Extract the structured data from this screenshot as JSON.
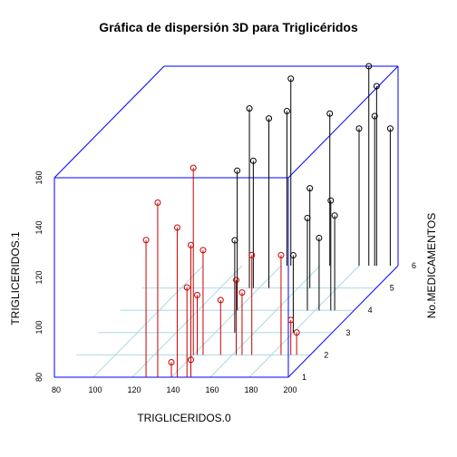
{
  "chart_data": {
    "type": "scatter3d",
    "title": "Gráfica de dispersión 3D para Triglicéridos",
    "xlabel": "TRIGLICERIDOS.0",
    "ylabel": "No.MEDICAMENTOS",
    "zlabel": "TRIGLICERIDOS.1",
    "xlim": [
      80,
      200
    ],
    "ylim": [
      1,
      6
    ],
    "zlim": [
      80,
      160
    ],
    "x_ticks": [
      "80",
      "100",
      "120",
      "140",
      "160",
      "180",
      "200"
    ],
    "y_ticks": [
      "1",
      "2",
      "3",
      "4",
      "5",
      "6"
    ],
    "z_ticks": [
      "80",
      "100",
      "120",
      "140",
      "160"
    ],
    "grid": true,
    "box": true,
    "colors": {
      "box": "#0000ff",
      "grid": "#add8e6",
      "front": "#cc0000",
      "back": "#000000",
      "text": "#000000"
    },
    "points": [
      {
        "x": 127,
        "y": 1,
        "z": 135
      },
      {
        "x": 140,
        "y": 1,
        "z": 86
      },
      {
        "x": 148,
        "y": 1,
        "z": 116
      },
      {
        "x": 143,
        "y": 1,
        "z": 140
      },
      {
        "x": 150,
        "y": 1,
        "z": 133
      },
      {
        "x": 150,
        "y": 1,
        "z": 87
      },
      {
        "x": 133,
        "y": 1,
        "z": 150
      },
      {
        "x": 145,
        "y": 2,
        "z": 122
      },
      {
        "x": 142,
        "y": 2,
        "z": 104
      },
      {
        "x": 154,
        "y": 2,
        "z": 102
      },
      {
        "x": 165,
        "y": 2,
        "z": 105
      },
      {
        "x": 162,
        "y": 2,
        "z": 110
      },
      {
        "x": 140,
        "y": 2,
        "z": 155
      },
      {
        "x": 170,
        "y": 2,
        "z": 120
      },
      {
        "x": 185,
        "y": 2,
        "z": 120
      },
      {
        "x": 190,
        "y": 2,
        "z": 94
      },
      {
        "x": 193,
        "y": 2,
        "z": 89
      },
      {
        "x": 180,
        "y": 3,
        "z": 111
      },
      {
        "x": 150,
        "y": 3,
        "z": 117
      },
      {
        "x": 182,
        "y": 4,
        "z": 109
      },
      {
        "x": 188,
        "y": 4,
        "z": 124
      },
      {
        "x": 140,
        "y": 4,
        "z": 136
      },
      {
        "x": 176,
        "y": 4,
        "z": 117
      },
      {
        "x": 190,
        "y": 4,
        "z": 118
      },
      {
        "x": 135,
        "y": 5,
        "z": 152
      },
      {
        "x": 145,
        "y": 5,
        "z": 148
      },
      {
        "x": 137,
        "y": 5,
        "z": 131
      },
      {
        "x": 166,
        "y": 5,
        "z": 120
      },
      {
        "x": 145,
        "y": 6,
        "z": 155
      },
      {
        "x": 143,
        "y": 6,
        "z": 142
      },
      {
        "x": 180,
        "y": 6,
        "z": 135
      },
      {
        "x": 165,
        "y": 6,
        "z": 141
      },
      {
        "x": 188,
        "y": 6,
        "z": 140
      },
      {
        "x": 189,
        "y": 6,
        "z": 152
      },
      {
        "x": 196,
        "y": 6,
        "z": 135
      },
      {
        "x": 185,
        "y": 6,
        "z": 160
      }
    ]
  }
}
